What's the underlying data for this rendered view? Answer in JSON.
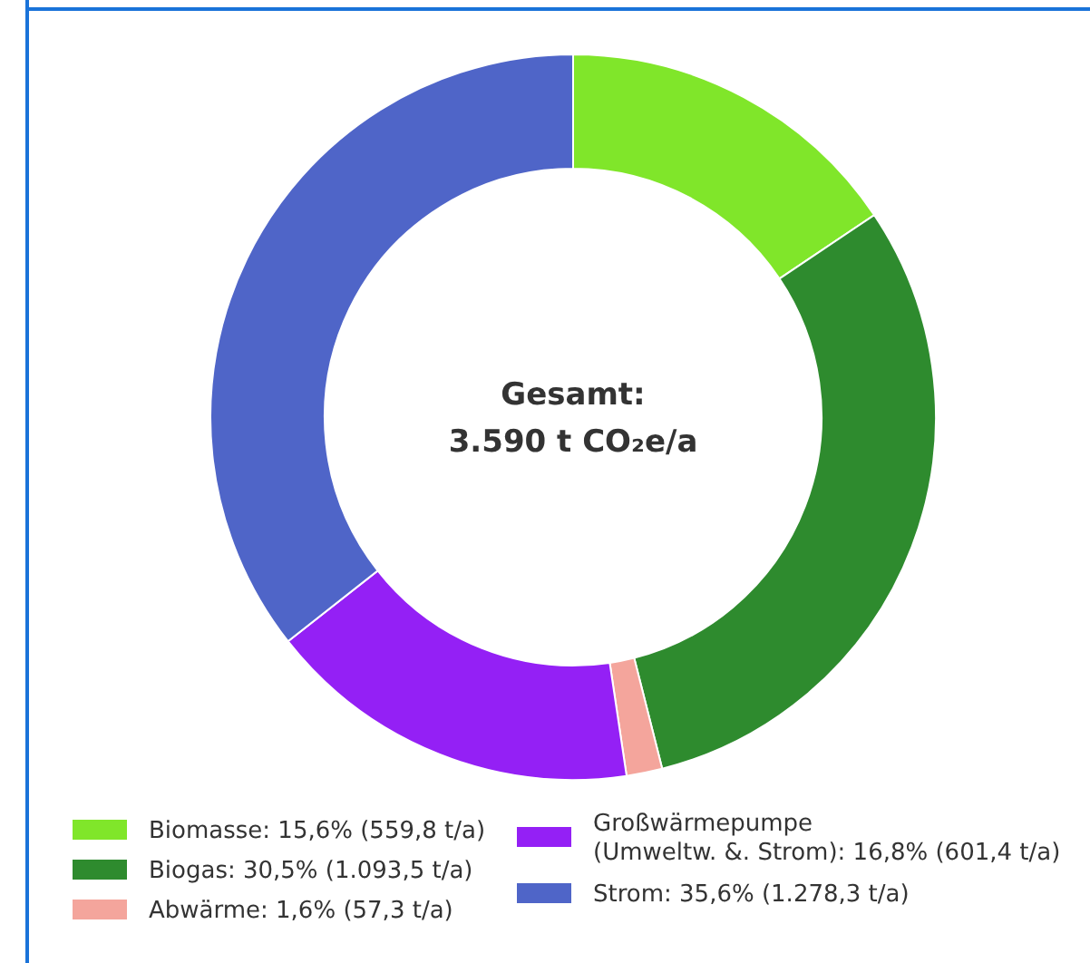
{
  "chart_data": {
    "type": "donut",
    "annotations": [
      "Gesamt:",
      "3.590 t CO₂e/a"
    ],
    "categories": [
      "Biomasse: 15,6% (559,8 t/a)",
      "Biogas: 30,5% (1.093,5 t/a)",
      "Abwärme: 1,6% (57,3 t/a)",
      "Großwärmepumpe\n(Umweltw. &. Strom): 16,8% (601,4 t/a)",
      "Strom: 35,6% (1.278,3 t/a)"
    ],
    "values": [
      559.8,
      1093.5,
      57.3,
      601.4,
      1278.3
    ],
    "colors": [
      "#80e62a",
      "#2e8b2e",
      "#f4a59c",
      "#9420f5",
      "#4f65c8"
    ],
    "legend": "bottom"
  }
}
